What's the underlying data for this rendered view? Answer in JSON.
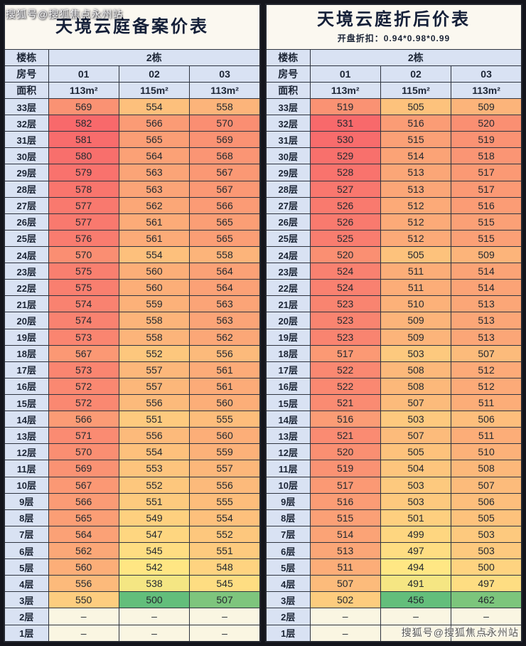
{
  "watermarks": {
    "top": "搜狐号@搜狐焦点永州站",
    "bottom": "搜狐号@搜狐焦点永州站"
  },
  "colors": {
    "page_bg": "#14151c",
    "header_bg": "#d9e2f3",
    "title_bg": "#fbf8f0",
    "border": "#2e3440",
    "scale_min": "#63be7b",
    "scale_mid": "#ffe984",
    "scale_max": "#f8696b",
    "empty_bg": "#faf6e2"
  },
  "empty_symbol": "–",
  "tables": [
    {
      "title": "天境云庭备案价表",
      "subtitle": "",
      "building_label": "楼栋",
      "building_value": "2栋",
      "room_label": "房号",
      "rooms": [
        "01",
        "02",
        "03"
      ],
      "area_label": "面积",
      "areas": [
        "113m²",
        "115m²",
        "113m²"
      ],
      "floors": [
        "33层",
        "32层",
        "31层",
        "30层",
        "29层",
        "28层",
        "27层",
        "26层",
        "25层",
        "24层",
        "23层",
        "22层",
        "21层",
        "20层",
        "19层",
        "18层",
        "17层",
        "16层",
        "15层",
        "14层",
        "13层",
        "12层",
        "11层",
        "10层",
        "9层",
        "8层",
        "7层",
        "6层",
        "5层",
        "4层",
        "3层",
        "2层",
        "1层"
      ],
      "rows": [
        [
          569,
          554,
          558
        ],
        [
          582,
          566,
          570
        ],
        [
          581,
          565,
          569
        ],
        [
          580,
          564,
          568
        ],
        [
          579,
          563,
          567
        ],
        [
          578,
          563,
          567
        ],
        [
          577,
          562,
          566
        ],
        [
          577,
          561,
          565
        ],
        [
          576,
          561,
          565
        ],
        [
          570,
          554,
          558
        ],
        [
          575,
          560,
          564
        ],
        [
          575,
          560,
          564
        ],
        [
          574,
          559,
          563
        ],
        [
          574,
          558,
          563
        ],
        [
          573,
          558,
          562
        ],
        [
          567,
          552,
          556
        ],
        [
          573,
          557,
          561
        ],
        [
          572,
          557,
          561
        ],
        [
          572,
          556,
          560
        ],
        [
          566,
          551,
          555
        ],
        [
          571,
          556,
          560
        ],
        [
          570,
          554,
          559
        ],
        [
          569,
          553,
          557
        ],
        [
          567,
          552,
          556
        ],
        [
          566,
          551,
          555
        ],
        [
          565,
          549,
          554
        ],
        [
          564,
          547,
          552
        ],
        [
          562,
          545,
          551
        ],
        [
          560,
          542,
          548
        ],
        [
          556,
          538,
          545
        ],
        [
          550,
          500,
          507
        ],
        [
          null,
          null,
          null
        ],
        [
          null,
          null,
          null
        ]
      ]
    },
    {
      "title": "天境云庭折后价表",
      "subtitle": "开盘折扣：0.94*0.98*0.99",
      "building_label": "楼栋",
      "building_value": "2栋",
      "room_label": "房号",
      "rooms": [
        "01",
        "02",
        "03"
      ],
      "area_label": "面积",
      "areas": [
        "113m²",
        "115m²",
        "113m²"
      ],
      "floors": [
        "33层",
        "32层",
        "31层",
        "30层",
        "29层",
        "28层",
        "27层",
        "26层",
        "25层",
        "24层",
        "23层",
        "22层",
        "21层",
        "20层",
        "19层",
        "18层",
        "17层",
        "16层",
        "15层",
        "14层",
        "13层",
        "12层",
        "11层",
        "10层",
        "9层",
        "8层",
        "7层",
        "6层",
        "5层",
        "4层",
        "3层",
        "2层",
        "1层"
      ],
      "rows": [
        [
          519,
          505,
          509
        ],
        [
          531,
          516,
          520
        ],
        [
          530,
          515,
          519
        ],
        [
          529,
          514,
          518
        ],
        [
          528,
          513,
          517
        ],
        [
          527,
          513,
          517
        ],
        [
          526,
          512,
          516
        ],
        [
          526,
          512,
          515
        ],
        [
          525,
          512,
          515
        ],
        [
          520,
          505,
          509
        ],
        [
          524,
          511,
          514
        ],
        [
          524,
          511,
          514
        ],
        [
          523,
          510,
          513
        ],
        [
          523,
          509,
          513
        ],
        [
          523,
          509,
          513
        ],
        [
          517,
          503,
          507
        ],
        [
          522,
          508,
          512
        ],
        [
          522,
          508,
          512
        ],
        [
          521,
          507,
          511
        ],
        [
          516,
          503,
          506
        ],
        [
          521,
          507,
          511
        ],
        [
          520,
          505,
          510
        ],
        [
          519,
          504,
          508
        ],
        [
          517,
          503,
          507
        ],
        [
          516,
          503,
          506
        ],
        [
          515,
          501,
          505
        ],
        [
          514,
          499,
          503
        ],
        [
          513,
          497,
          503
        ],
        [
          511,
          494,
          500
        ],
        [
          507,
          491,
          497
        ],
        [
          502,
          456,
          462
        ],
        [
          null,
          null,
          null
        ],
        [
          null,
          null,
          null
        ]
      ]
    }
  ]
}
